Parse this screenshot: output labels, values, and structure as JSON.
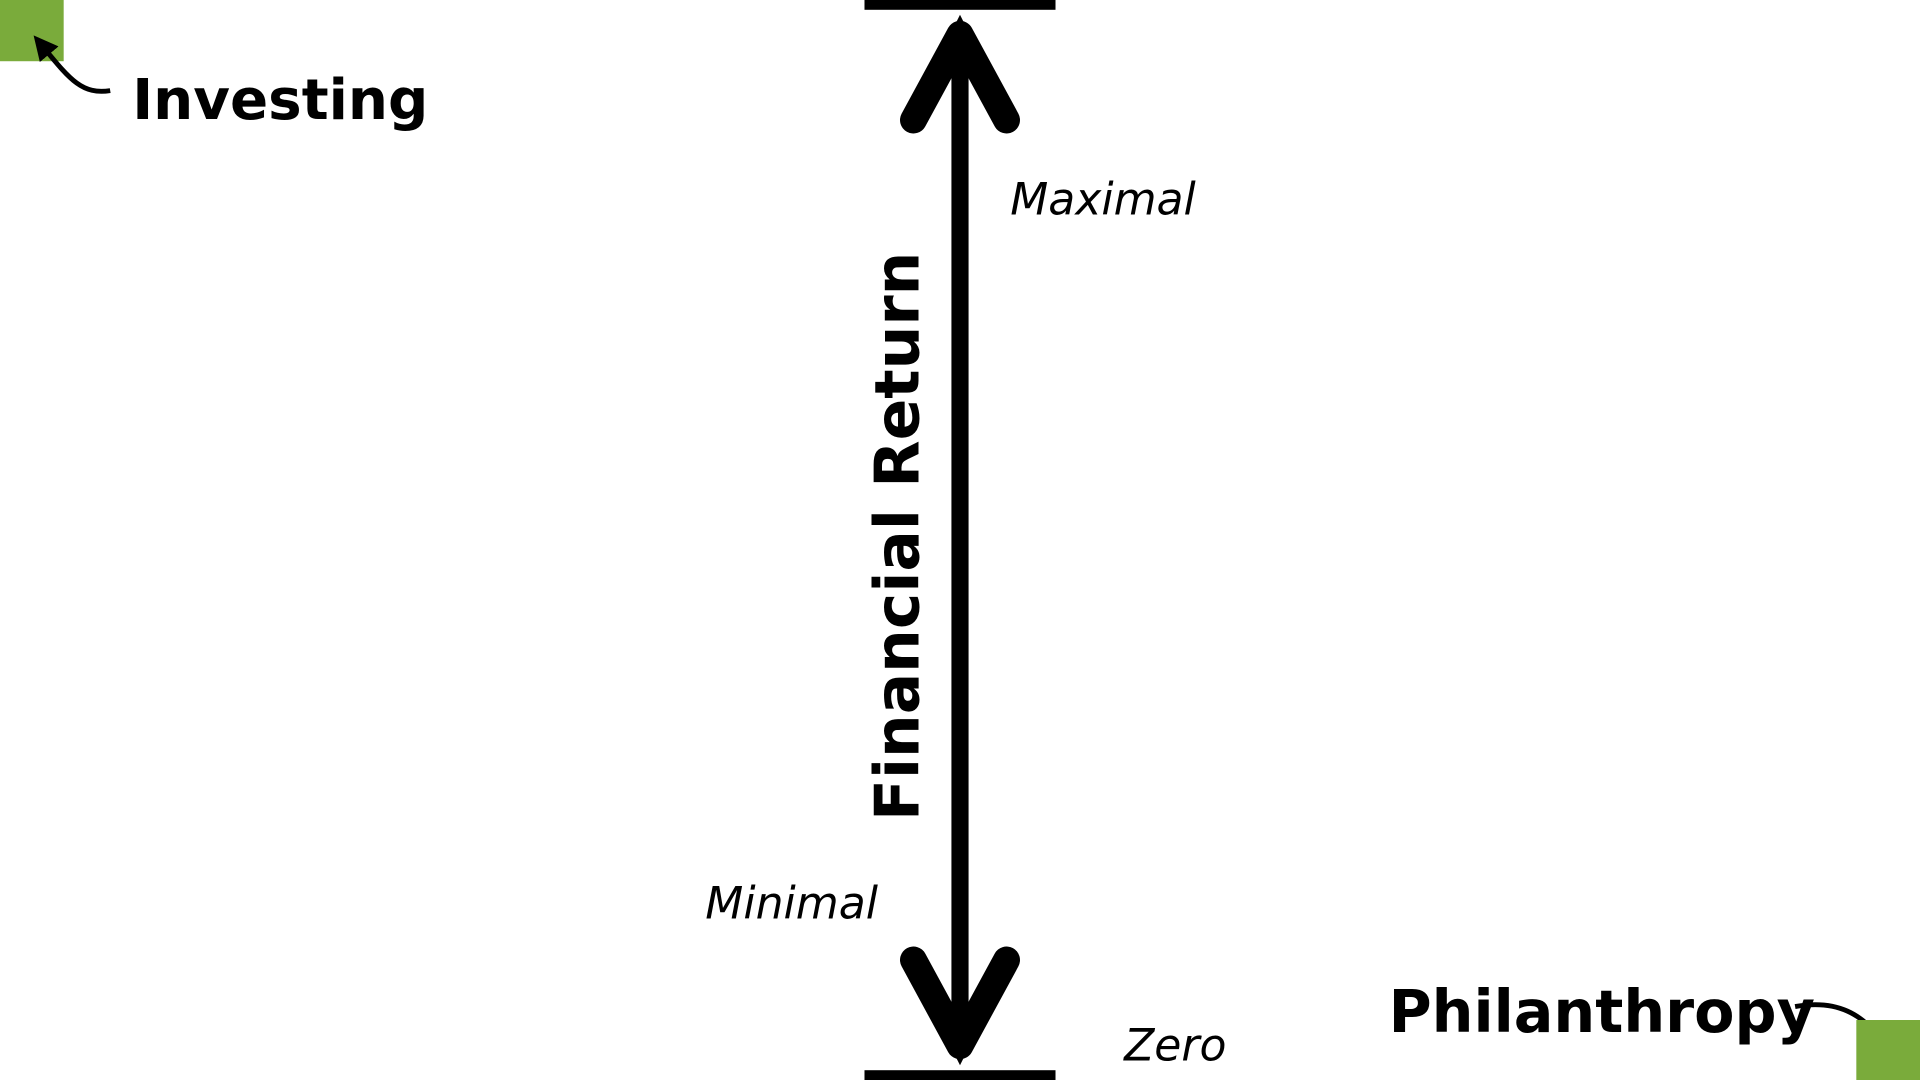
{
  "investing": "Investing",
  "philanthropy": "Philanthropy",
  "axis": {
    "title": "Financial Return",
    "top": "Maximal",
    "middle": "Minimal",
    "bottom": "Zero"
  }
}
